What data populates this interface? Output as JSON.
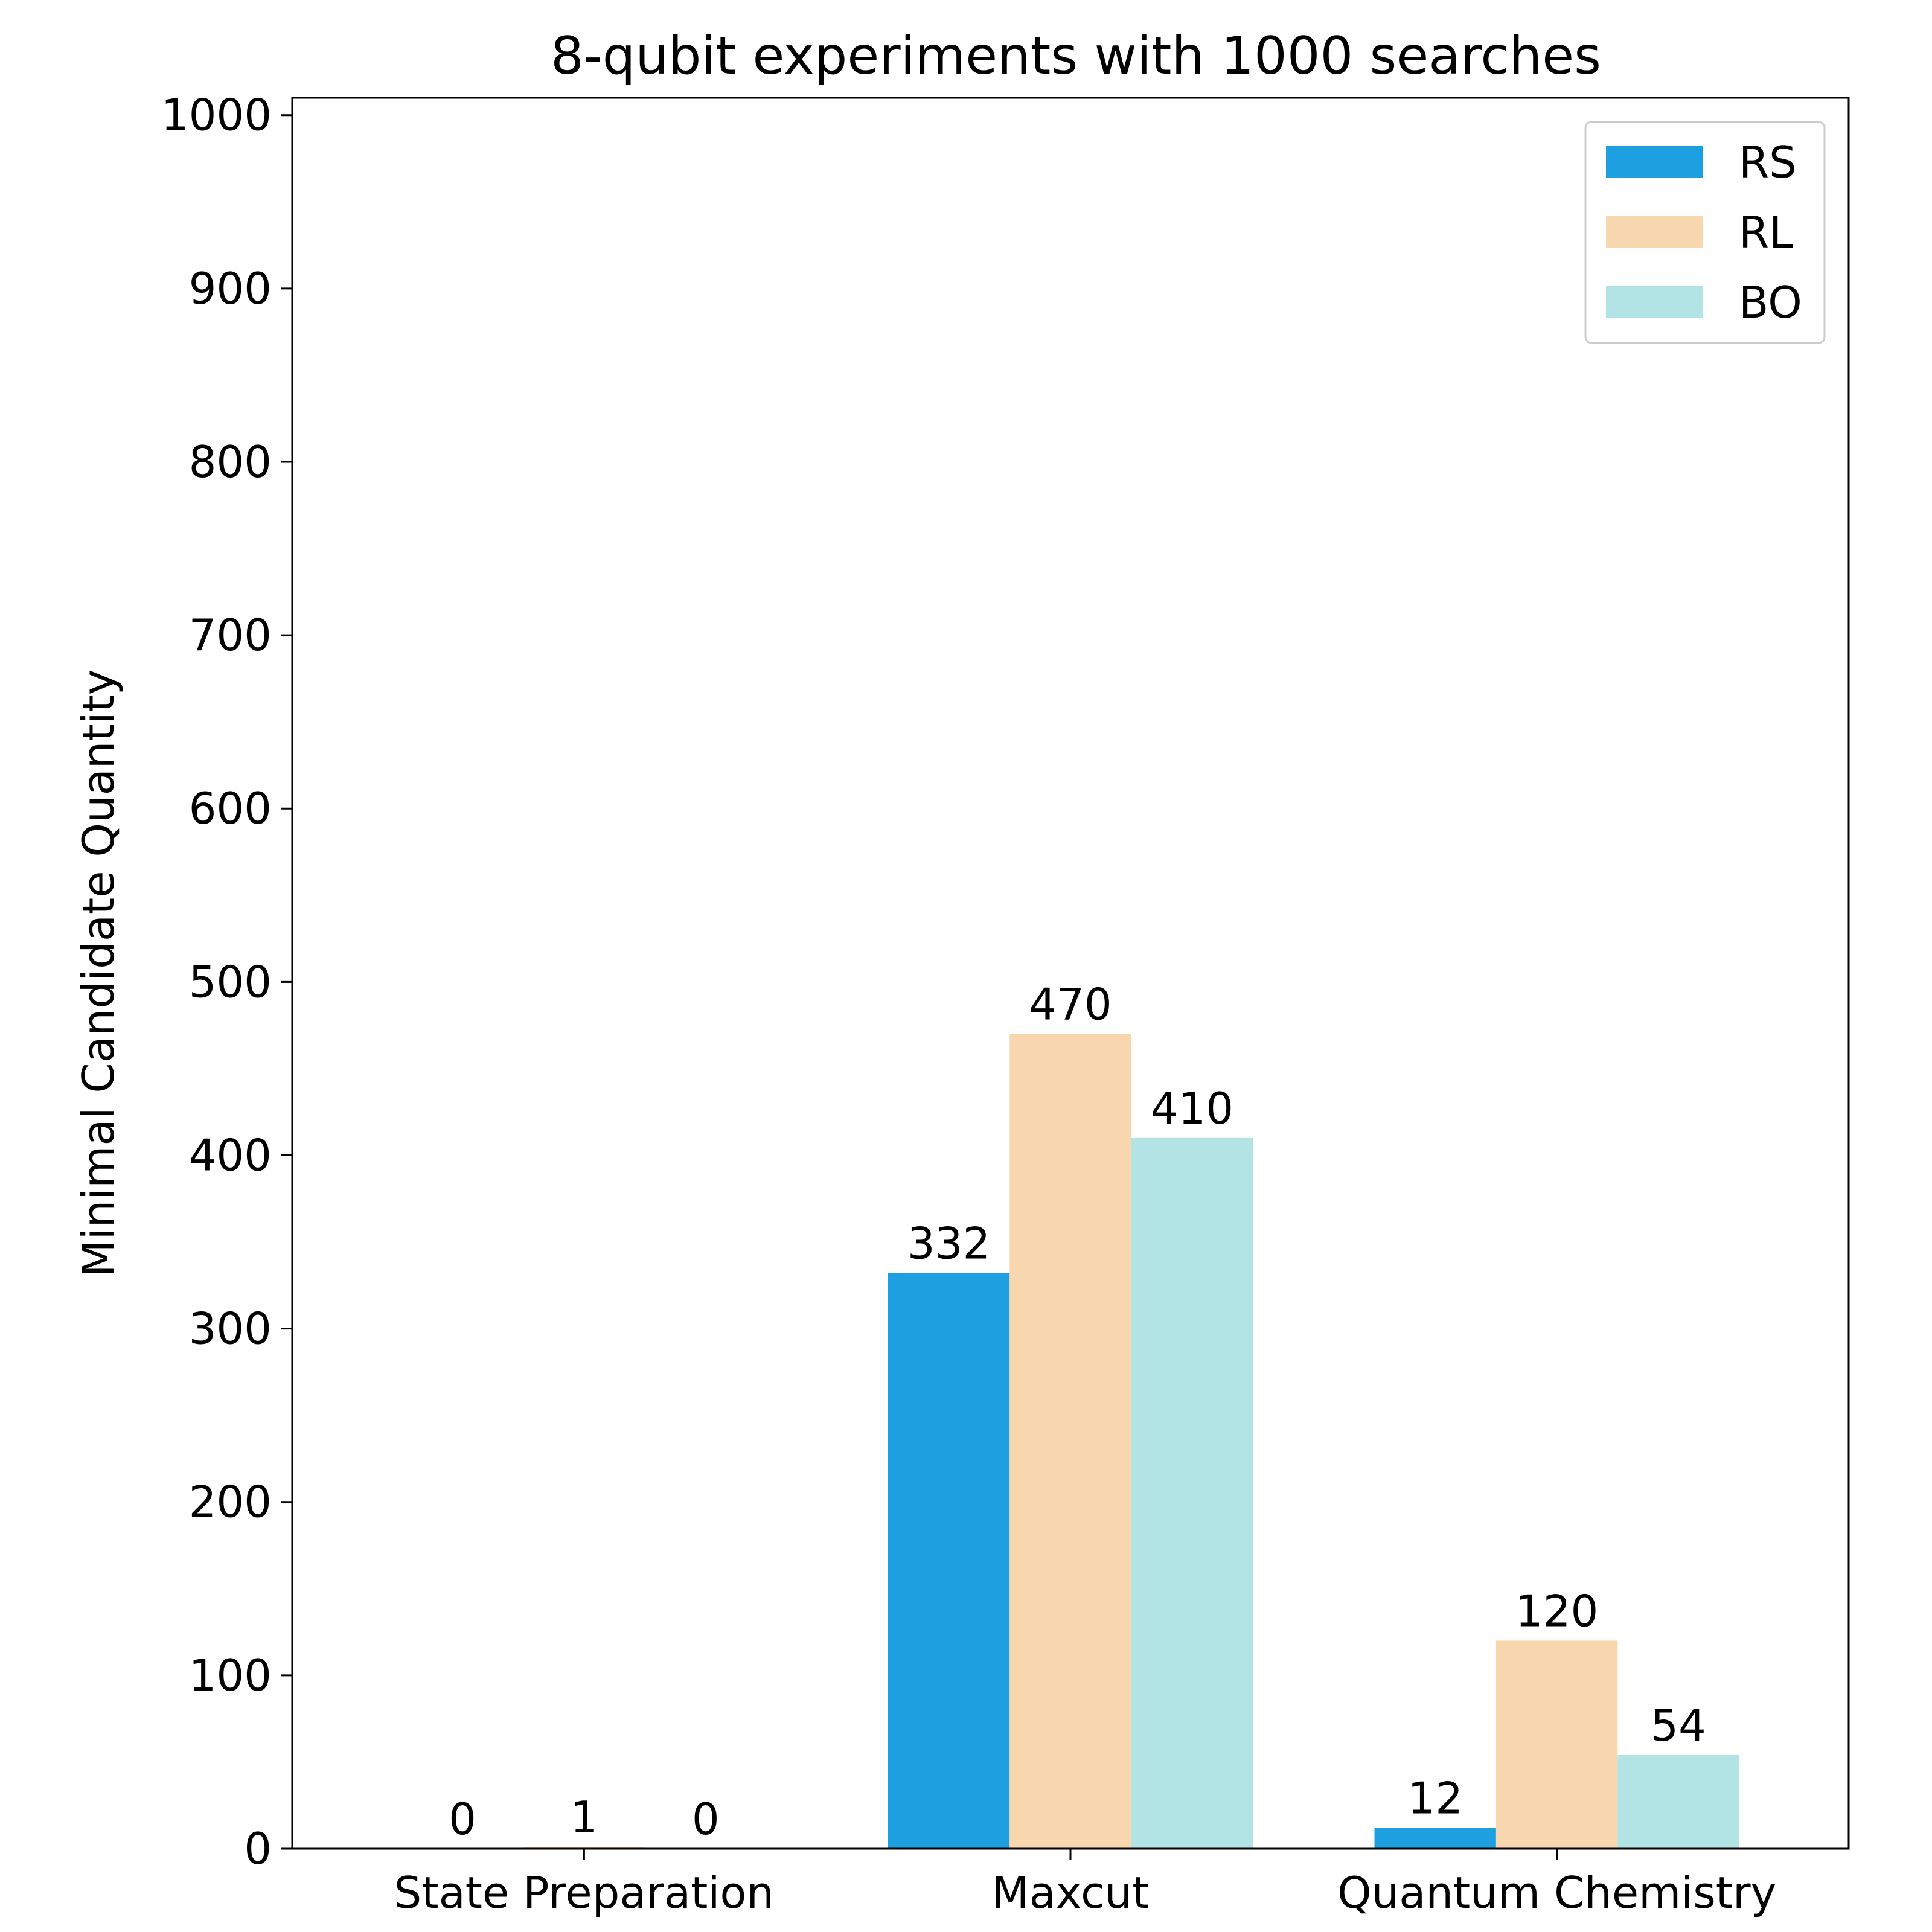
{
  "chart_data": {
    "type": "bar",
    "title": "8-qubit experiments with 1000 searches",
    "xlabel": "",
    "ylabel": "Minimal Candidate Quantity",
    "categories": [
      "State Preparation",
      "Maxcut",
      "Quantum Chemistry"
    ],
    "series": [
      {
        "name": "RS",
        "values": [
          0,
          332,
          12
        ],
        "color": "#1ea0e0"
      },
      {
        "name": "RL",
        "values": [
          1,
          470,
          120
        ],
        "color": "#f8d7ae"
      },
      {
        "name": "BO",
        "values": [
          0,
          410,
          54
        ],
        "color": "#b2e3e5"
      }
    ],
    "ylim": [
      0,
      1010
    ],
    "yticks": [
      0,
      100,
      200,
      300,
      400,
      500,
      600,
      700,
      800,
      900,
      1000
    ],
    "data_labels": true,
    "legend": "top-right",
    "grid": false
  }
}
